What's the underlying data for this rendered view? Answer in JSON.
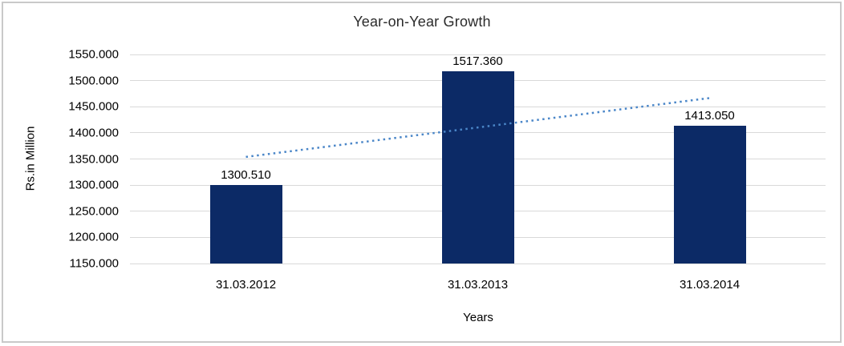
{
  "chart_data": {
    "type": "bar",
    "title": "Year-on-Year Growth",
    "xlabel": "Years",
    "ylabel": "Rs.in Million",
    "categories": [
      "31.03.2012",
      "31.03.2013",
      "31.03.2014"
    ],
    "values": [
      1300.51,
      1517.36,
      1413.05
    ],
    "bar_labels": [
      "1300.510",
      "1517.360",
      "1413.050"
    ],
    "ylim": [
      1150,
      1550
    ],
    "yticks": [
      {
        "value": 1550,
        "label": "1550.000"
      },
      {
        "value": 1500,
        "label": "1500.000"
      },
      {
        "value": 1450,
        "label": "1450.000"
      },
      {
        "value": 1400,
        "label": "1400.000"
      },
      {
        "value": 1350,
        "label": "1350.000"
      },
      {
        "value": 1300,
        "label": "1300.000"
      },
      {
        "value": 1250,
        "label": "1250.000"
      },
      {
        "value": 1200,
        "label": "1200.000"
      },
      {
        "value": 1150,
        "label": "1150.000"
      }
    ],
    "grid": true,
    "legend": "none",
    "colors": {
      "bar": "#0c2a66",
      "gridline": "#d9d9d9",
      "trendline": "#4a86c8",
      "text": "#000000",
      "border": "#c9c9c9"
    },
    "trendline": {
      "type": "linear",
      "style": "dotted",
      "start_value": 1354.0,
      "end_value": 1466.6
    }
  }
}
